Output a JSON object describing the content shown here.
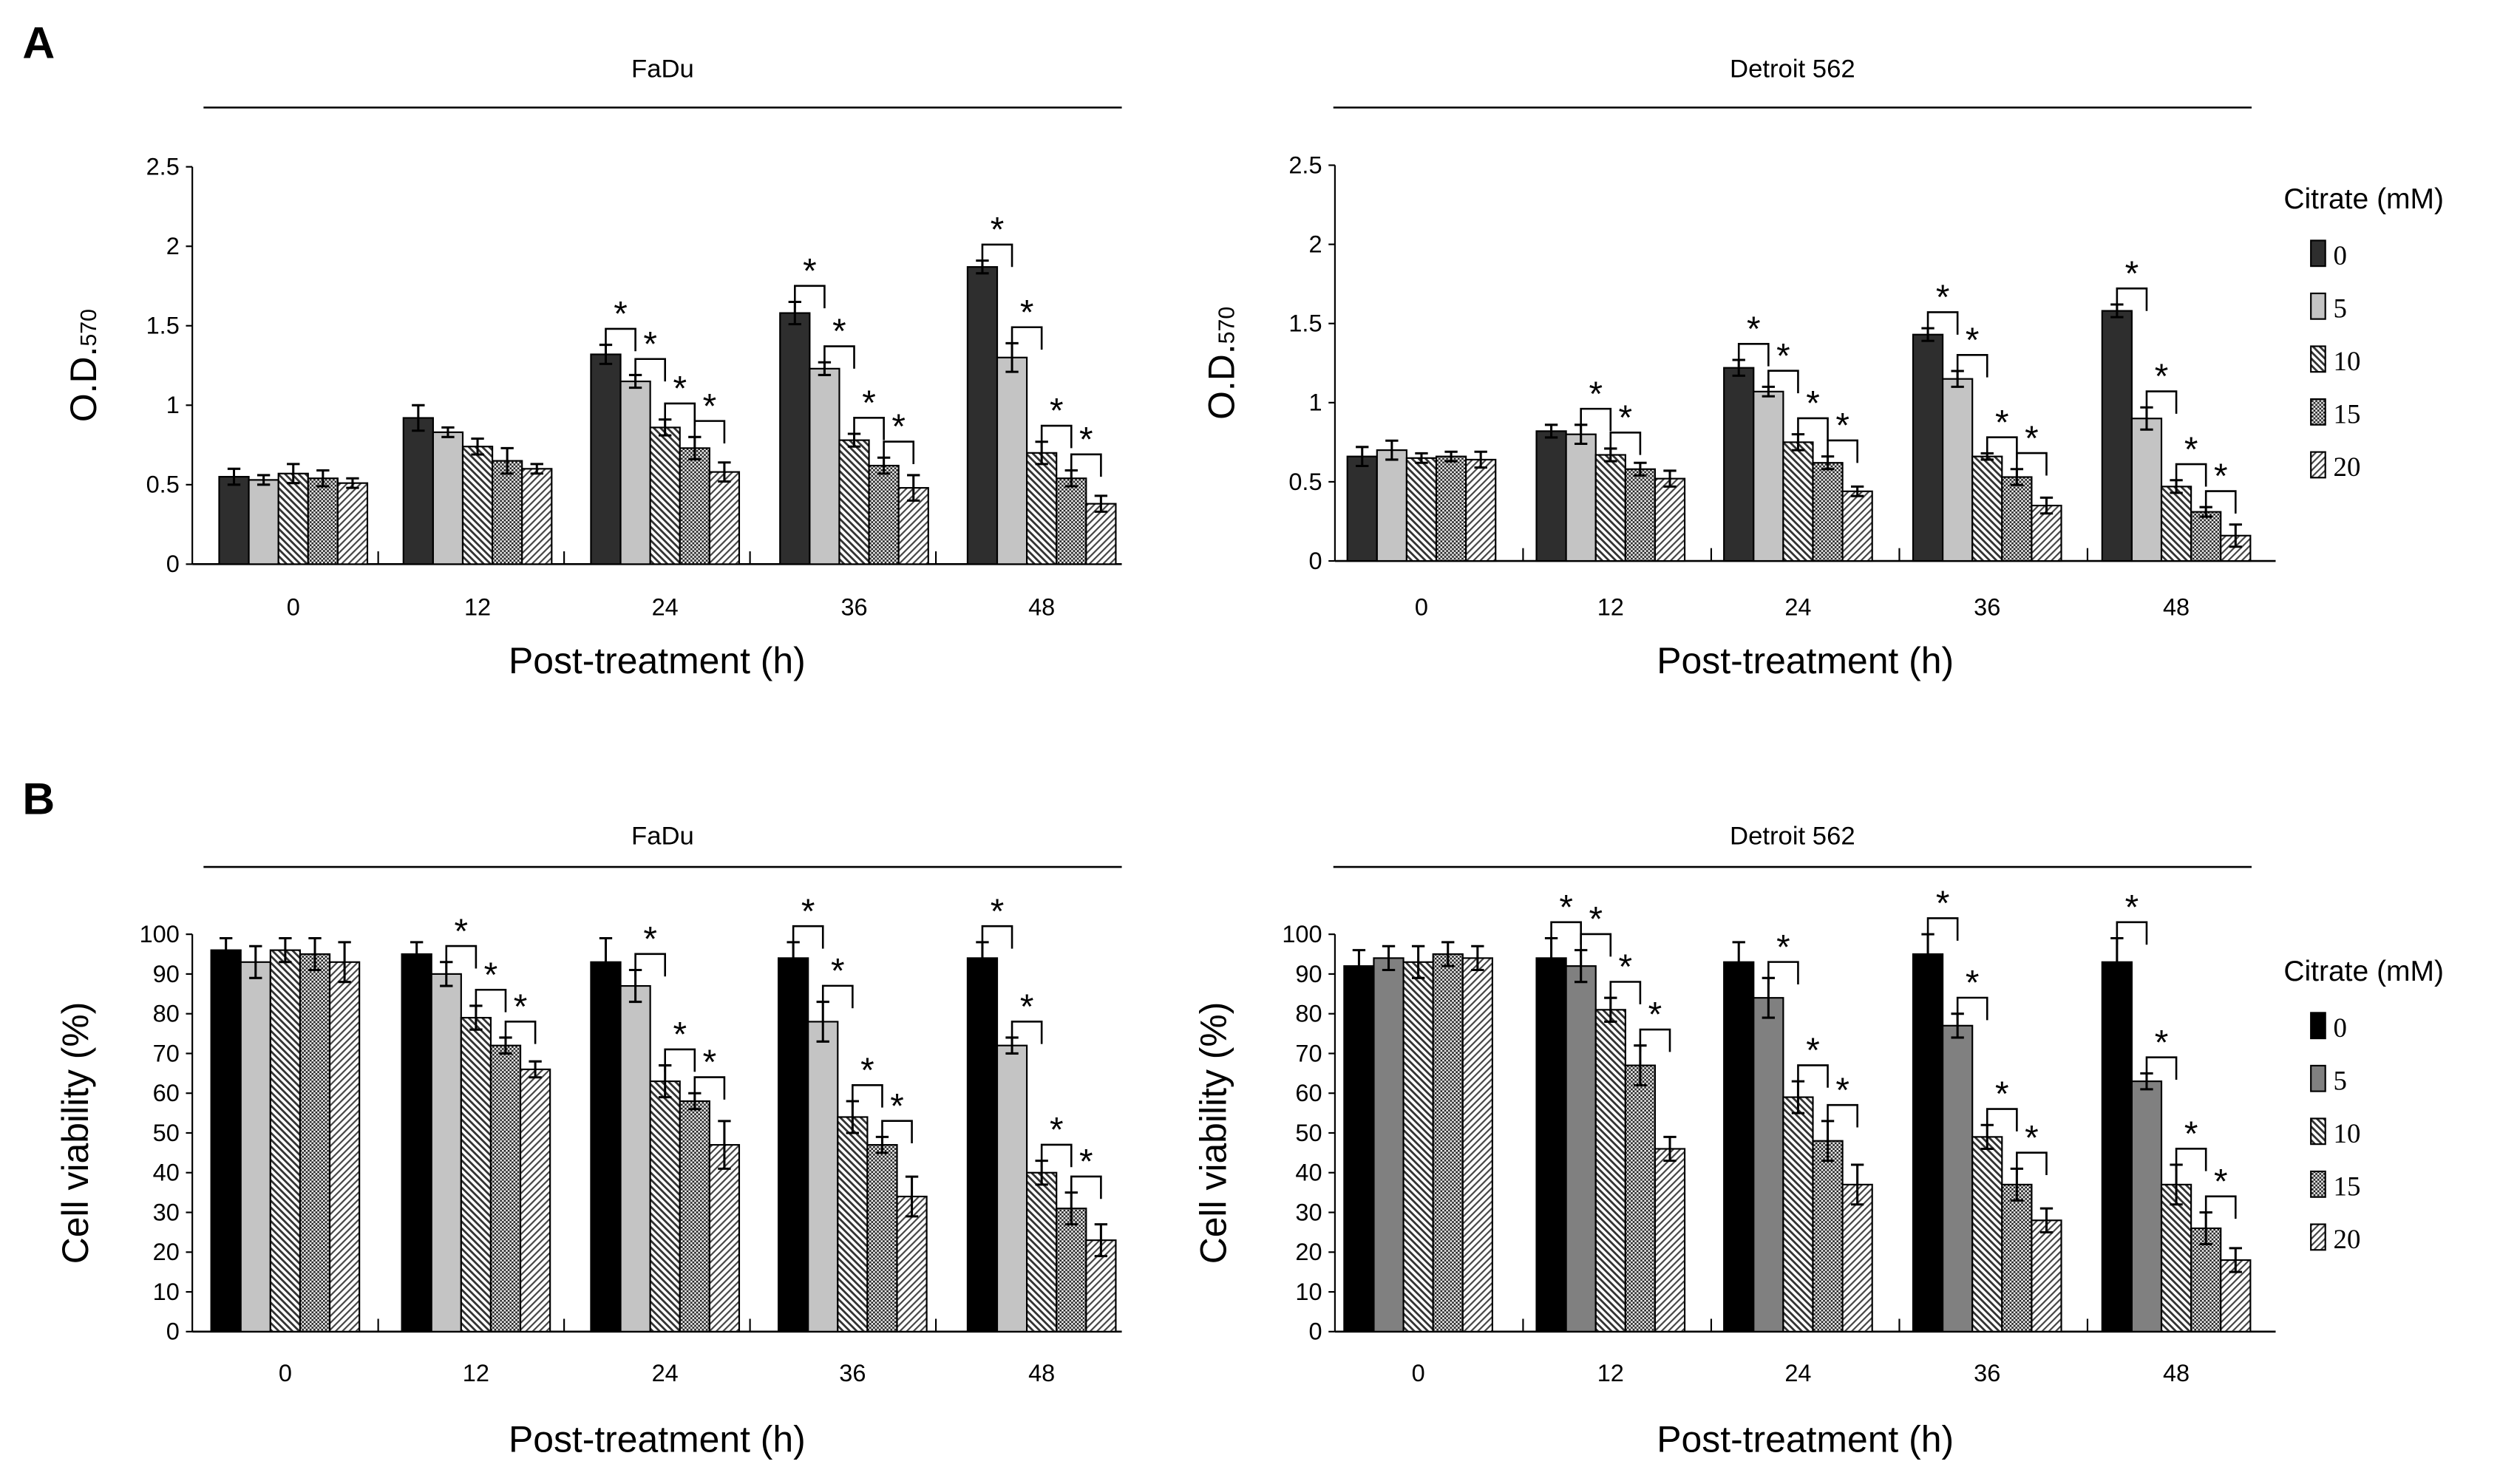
{
  "panel_labels": [
    "A",
    "B"
  ],
  "legend": {
    "title": "Citrate (mM)",
    "entries": [
      "0",
      "5",
      "10",
      "15",
      "20"
    ]
  },
  "colors": {
    "A_0": "#2e2e2e",
    "A_5": "#c4c4c4",
    "B_FaDu_0": "#000000",
    "B_FaDu_5": "#c4c4c4",
    "B_Detroit_0": "#000000",
    "B_Detroit_5": "#808080"
  },
  "chart_data": [
    {
      "id": "A-FaDu",
      "type": "bar",
      "panel": "A",
      "title": "FaDu",
      "xlabel": "Post-treatment (h)",
      "ylabel": "O.D.",
      "ylabel_sub": "570",
      "categories": [
        "0",
        "12",
        "24",
        "36",
        "48"
      ],
      "ylim": [
        0,
        2.5
      ],
      "yticks": [
        "0",
        "0.5",
        "1",
        "1.5",
        "2",
        "2.5"
      ],
      "ytick_values": [
        0,
        0.5,
        1,
        1.5,
        2,
        2.5
      ],
      "legend": false,
      "series": [
        {
          "name": "0",
          "values": [
            0.55,
            0.92,
            1.32,
            1.58,
            1.87
          ],
          "err": [
            0.05,
            0.08,
            0.06,
            0.07,
            0.04
          ]
        },
        {
          "name": "5",
          "values": [
            0.53,
            0.83,
            1.15,
            1.23,
            1.3
          ],
          "err": [
            0.03,
            0.03,
            0.04,
            0.04,
            0.09
          ]
        },
        {
          "name": "10",
          "values": [
            0.57,
            0.74,
            0.86,
            0.78,
            0.7
          ],
          "err": [
            0.06,
            0.05,
            0.05,
            0.04,
            0.07
          ]
        },
        {
          "name": "15",
          "values": [
            0.54,
            0.65,
            0.73,
            0.62,
            0.54
          ],
          "err": [
            0.05,
            0.08,
            0.07,
            0.05,
            0.05
          ]
        },
        {
          "name": "20",
          "values": [
            0.51,
            0.6,
            0.58,
            0.48,
            0.38
          ],
          "err": [
            0.03,
            0.03,
            0.06,
            0.08,
            0.05
          ]
        }
      ],
      "significance": [
        [],
        [],
        [
          [
            0,
            1
          ],
          [
            1,
            2
          ],
          [
            2,
            3
          ],
          [
            3,
            4
          ]
        ],
        [
          [
            0,
            1
          ],
          [
            1,
            2
          ],
          [
            2,
            3
          ],
          [
            3,
            4
          ]
        ],
        [
          [
            0,
            1
          ],
          [
            1,
            2
          ],
          [
            2,
            3
          ],
          [
            3,
            4
          ]
        ]
      ],
      "star": "*"
    },
    {
      "id": "A-Detroit",
      "type": "bar",
      "panel": "A",
      "title": "Detroit 562",
      "xlabel": "Post-treatment (h)",
      "ylabel": "O.D.",
      "ylabel_sub": "570",
      "categories": [
        "0",
        "12",
        "24",
        "36",
        "48"
      ],
      "ylim": [
        0,
        2.5
      ],
      "yticks": [
        "0",
        "0.5",
        "1",
        "1.5",
        "2",
        "2.5"
      ],
      "ytick_values": [
        0,
        0.5,
        1,
        1.5,
        2,
        2.5
      ],
      "legend": true,
      "series": [
        {
          "name": "0",
          "values": [
            0.66,
            0.82,
            1.22,
            1.43,
            1.58
          ],
          "err": [
            0.06,
            0.04,
            0.05,
            0.04,
            0.04
          ]
        },
        {
          "name": "5",
          "values": [
            0.7,
            0.8,
            1.07,
            1.15,
            0.9
          ],
          "err": [
            0.06,
            0.06,
            0.03,
            0.05,
            0.07
          ]
        },
        {
          "name": "10",
          "values": [
            0.65,
            0.67,
            0.75,
            0.66,
            0.47
          ],
          "err": [
            0.03,
            0.04,
            0.05,
            0.02,
            0.04
          ]
        },
        {
          "name": "15",
          "values": [
            0.66,
            0.58,
            0.62,
            0.53,
            0.31
          ],
          "err": [
            0.03,
            0.04,
            0.04,
            0.05,
            0.03
          ]
        },
        {
          "name": "20",
          "values": [
            0.64,
            0.52,
            0.44,
            0.35,
            0.16
          ],
          "err": [
            0.05,
            0.05,
            0.03,
            0.05,
            0.07
          ]
        }
      ],
      "significance": [
        [],
        [
          [
            1,
            2
          ],
          [
            2,
            3
          ]
        ],
        [
          [
            0,
            1
          ],
          [
            1,
            2
          ],
          [
            2,
            3
          ],
          [
            3,
            4
          ]
        ],
        [
          [
            0,
            1
          ],
          [
            1,
            2
          ],
          [
            2,
            3
          ],
          [
            3,
            4
          ]
        ],
        [
          [
            0,
            1
          ],
          [
            1,
            2
          ],
          [
            2,
            3
          ],
          [
            3,
            4
          ]
        ]
      ],
      "star": "*"
    },
    {
      "id": "B-FaDu",
      "type": "bar",
      "panel": "B",
      "title": "FaDu",
      "xlabel": "Post-treatment (h)",
      "ylabel": "Cell viability (%)",
      "ylabel_sub": "",
      "categories": [
        "0",
        "12",
        "24",
        "36",
        "48"
      ],
      "ylim": [
        0,
        100
      ],
      "yticks": [
        "0",
        "10",
        "20",
        "30",
        "40",
        "50",
        "60",
        "70",
        "80",
        "90",
        "100"
      ],
      "ytick_values": [
        0,
        10,
        20,
        30,
        40,
        50,
        60,
        70,
        80,
        90,
        100
      ],
      "legend": false,
      "series": [
        {
          "name": "0",
          "values": [
            96,
            95,
            93,
            94,
            94
          ],
          "err": [
            3,
            3,
            6,
            4,
            4
          ]
        },
        {
          "name": "5",
          "values": [
            93,
            90,
            87,
            78,
            72
          ],
          "err": [
            4,
            3,
            4,
            5,
            2
          ]
        },
        {
          "name": "10",
          "values": [
            96,
            79,
            63,
            54,
            40
          ],
          "err": [
            3,
            3,
            4,
            4,
            3
          ]
        },
        {
          "name": "15",
          "values": [
            95,
            72,
            58,
            47,
            31
          ],
          "err": [
            4,
            2,
            2,
            2,
            4
          ]
        },
        {
          "name": "20",
          "values": [
            93,
            66,
            47,
            34,
            23
          ],
          "err": [
            5,
            2,
            6,
            5,
            4
          ]
        }
      ],
      "significance": [
        [],
        [
          [
            1,
            2
          ],
          [
            2,
            3
          ],
          [
            3,
            4
          ]
        ],
        [
          [
            1,
            2
          ],
          [
            2,
            3
          ],
          [
            3,
            4
          ]
        ],
        [
          [
            0,
            1
          ],
          [
            1,
            2
          ],
          [
            2,
            3
          ],
          [
            3,
            4
          ]
        ],
        [
          [
            0,
            1
          ],
          [
            1,
            2
          ],
          [
            2,
            3
          ],
          [
            3,
            4
          ]
        ]
      ],
      "star": "*"
    },
    {
      "id": "B-Detroit",
      "type": "bar",
      "panel": "B",
      "title": "Detroit 562",
      "xlabel": "Post-treatment (h)",
      "ylabel": "Cell viability (%)",
      "ylabel_sub": "",
      "categories": [
        "0",
        "12",
        "24",
        "36",
        "48"
      ],
      "ylim": [
        0,
        100
      ],
      "yticks": [
        "0",
        "10",
        "20",
        "30",
        "40",
        "50",
        "60",
        "70",
        "80",
        "90",
        "100"
      ],
      "ytick_values": [
        0,
        10,
        20,
        30,
        40,
        50,
        60,
        70,
        80,
        90,
        100
      ],
      "legend": true,
      "series": [
        {
          "name": "0",
          "values": [
            92,
            94,
            93,
            95,
            93
          ],
          "err": [
            4,
            5,
            5,
            5,
            6
          ]
        },
        {
          "name": "5",
          "values": [
            94,
            92,
            84,
            77,
            63
          ],
          "err": [
            3,
            4,
            5,
            3,
            2
          ]
        },
        {
          "name": "10",
          "values": [
            93,
            81,
            59,
            49,
            37
          ],
          "err": [
            4,
            3,
            4,
            3,
            5
          ]
        },
        {
          "name": "15",
          "values": [
            95,
            67,
            48,
            37,
            26
          ],
          "err": [
            3,
            5,
            5,
            4,
            4
          ]
        },
        {
          "name": "20",
          "values": [
            94,
            46,
            37,
            28,
            18
          ],
          "err": [
            3,
            3,
            5,
            3,
            3
          ]
        }
      ],
      "significance": [
        [],
        [
          [
            0,
            1
          ],
          [
            1,
            2
          ],
          [
            2,
            3
          ],
          [
            3,
            4
          ]
        ],
        [
          [
            1,
            2
          ],
          [
            2,
            3
          ],
          [
            3,
            4
          ]
        ],
        [
          [
            0,
            1
          ],
          [
            1,
            2
          ],
          [
            2,
            3
          ],
          [
            3,
            4
          ]
        ],
        [
          [
            0,
            1
          ],
          [
            1,
            2
          ],
          [
            2,
            3
          ],
          [
            3,
            4
          ]
        ]
      ],
      "star": "*"
    }
  ]
}
